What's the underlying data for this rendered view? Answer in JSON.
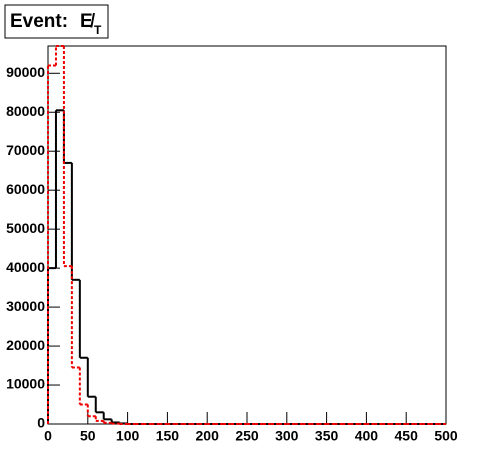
{
  "chart_data": {
    "type": "histogram",
    "title": "Event:",
    "title_symbol": "E̸",
    "title_subscript": "T",
    "bins": [
      0,
      10,
      20,
      30,
      40,
      50,
      60,
      70,
      80,
      90,
      100,
      110,
      120,
      130,
      140,
      150,
      160,
      170,
      180,
      190,
      200,
      210,
      220,
      230,
      240,
      250,
      260,
      270,
      280,
      290,
      300,
      310,
      320,
      330,
      340,
      350,
      360,
      370,
      380,
      390,
      400,
      410,
      420,
      430,
      440,
      450,
      460,
      470,
      480,
      490,
      500
    ],
    "series": [
      {
        "color": "#000000",
        "dash": false,
        "values": [
          40000,
          80500,
          67000,
          37000,
          17000,
          7000,
          3000,
          1200,
          400,
          150,
          0,
          0,
          0,
          0,
          0,
          0,
          0,
          0,
          0,
          0,
          0,
          0,
          0,
          0,
          0,
          0,
          0,
          0,
          0,
          0,
          0,
          0,
          0,
          0,
          0,
          0,
          0,
          0,
          0,
          0,
          0,
          0,
          0,
          0,
          0,
          0,
          0,
          0,
          0,
          0
        ]
      },
      {
        "color": "#ee0000",
        "dash": true,
        "values": [
          92000,
          97000,
          40500,
          14500,
          5000,
          2000,
          800,
          300,
          100,
          0,
          0,
          0,
          0,
          0,
          0,
          0,
          0,
          0,
          0,
          0,
          0,
          0,
          0,
          0,
          0,
          0,
          0,
          0,
          0,
          0,
          0,
          0,
          0,
          0,
          0,
          0,
          0,
          0,
          0,
          0,
          0,
          0,
          0,
          0,
          0,
          0,
          0,
          0,
          0,
          0
        ]
      }
    ],
    "xlim": [
      0,
      500
    ],
    "xticks": [
      0,
      50,
      100,
      150,
      200,
      250,
      300,
      350,
      400,
      450,
      500
    ],
    "ylim": [
      0,
      97000
    ],
    "yticks": [
      0,
      10000,
      20000,
      30000,
      40000,
      50000,
      60000,
      70000,
      80000,
      90000
    ]
  }
}
